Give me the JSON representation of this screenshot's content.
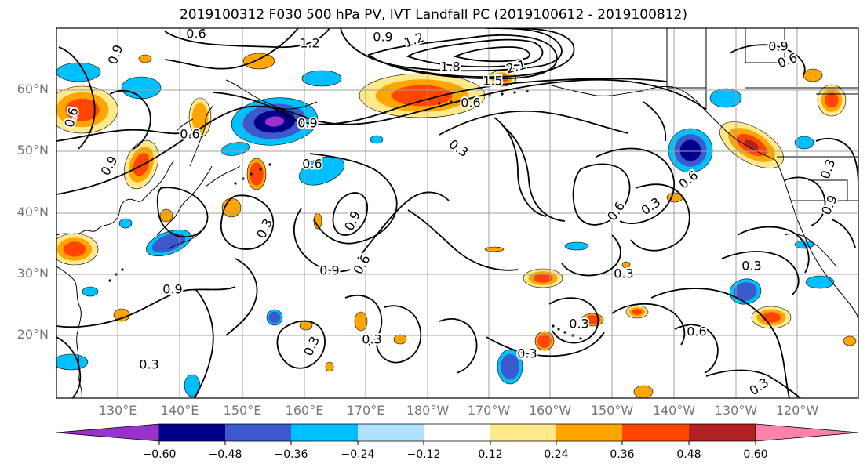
{
  "title": "2019100312 F030 500 hPa PV, IVT Landfall PC (2019100612 - 2019100812)",
  "map": {
    "latitude_labels": [
      "60°N",
      "50°N",
      "40°N",
      "30°N",
      "20°N"
    ],
    "longitude_labels": [
      "130°E",
      "140°E",
      "150°E",
      "160°E",
      "170°E",
      "180°W",
      "170°W",
      "160°W",
      "150°W",
      "140°W",
      "130°W",
      "120°W"
    ],
    "contour_labels": [
      "0.6",
      "1.2",
      "0.9",
      "1.2",
      "1.8",
      "2.1",
      "1.5",
      "0.9",
      "0.6",
      "0.9",
      "0.6",
      "0.6",
      "0.9",
      "0.6",
      "0.3",
      "0.6",
      "0.9",
      "0.9",
      "0.6",
      "0.3",
      "0.3",
      "0.3",
      "0.9",
      "0.6",
      "0.3",
      "0.9",
      "0.3",
      "0.3",
      "0.3",
      "0.3",
      "0.3",
      "0.6",
      "0.3",
      "0.6",
      "0.9",
      "0.3"
    ],
    "line_color": "#000000",
    "grid_color": "#a0a0a0"
  },
  "colorbar": {
    "ticks": [
      "−0.60",
      "−0.48",
      "−0.36",
      "−0.24",
      "−0.12",
      "0.12",
      "0.24",
      "0.36",
      "0.48",
      "0.60"
    ],
    "colors": [
      "#9932cc",
      "#00008b",
      "#3d5acd",
      "#00bfff",
      "#b0e2ff",
      "#ffffff",
      "#ffe98a",
      "#ffa500",
      "#ff4500",
      "#b22222",
      "#ff82ab"
    ]
  },
  "fill_colors": {
    "neg1": "#00bfff",
    "neg2": "#3d5acd",
    "neg3": "#00008b",
    "neg4": "#9932cc",
    "pos1": "#ffe98a",
    "pos2": "#ffa500",
    "pos3": "#ff4500",
    "pos4": "#b22222"
  }
}
